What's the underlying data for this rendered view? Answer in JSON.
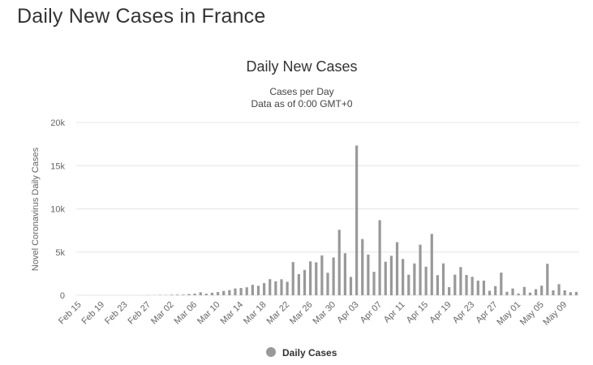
{
  "page": {
    "title": "Daily New Cases in France"
  },
  "colors": {
    "bar": "#999999",
    "grid": "#e6e6e6",
    "text": "#333333"
  },
  "chart_data": {
    "type": "bar",
    "title": "Daily New Cases",
    "subtitle": [
      "Cases per Day",
      "Data as of 0:00 GMT+0"
    ],
    "xlabel": "",
    "ylabel": "Novel Coronavirus Daily Cases",
    "ylim": [
      0,
      20000
    ],
    "yticks": [
      0,
      5000,
      10000,
      15000,
      20000
    ],
    "ytick_labels": [
      "0",
      "5k",
      "10k",
      "15k",
      "20k"
    ],
    "legend": {
      "label": "Daily Cases",
      "position": "bottom-center"
    },
    "categories": [
      "Feb 15",
      "Feb 16",
      "Feb 17",
      "Feb 18",
      "Feb 19",
      "Feb 20",
      "Feb 21",
      "Feb 22",
      "Feb 23",
      "Feb 24",
      "Feb 25",
      "Feb 26",
      "Feb 27",
      "Feb 28",
      "Feb 29",
      "Mar 01",
      "Mar 02",
      "Mar 03",
      "Mar 04",
      "Mar 05",
      "Mar 06",
      "Mar 07",
      "Mar 08",
      "Mar 09",
      "Mar 10",
      "Mar 11",
      "Mar 12",
      "Mar 13",
      "Mar 14",
      "Mar 15",
      "Mar 16",
      "Mar 17",
      "Mar 18",
      "Mar 19",
      "Mar 20",
      "Mar 21",
      "Mar 22",
      "Mar 23",
      "Mar 24",
      "Mar 25",
      "Mar 26",
      "Mar 27",
      "Mar 28",
      "Mar 29",
      "Mar 30",
      "Mar 31",
      "Apr 01",
      "Apr 02",
      "Apr 03",
      "Apr 04",
      "Apr 05",
      "Apr 06",
      "Apr 07",
      "Apr 08",
      "Apr 09",
      "Apr 10",
      "Apr 11",
      "Apr 12",
      "Apr 13",
      "Apr 14",
      "Apr 15",
      "Apr 16",
      "Apr 17",
      "Apr 18",
      "Apr 19",
      "Apr 20",
      "Apr 21",
      "Apr 22",
      "Apr 23",
      "Apr 24",
      "Apr 25",
      "Apr 26",
      "Apr 27",
      "Apr 28",
      "Apr 29",
      "Apr 30",
      "May 01",
      "May 02",
      "May 03",
      "May 04",
      "May 05",
      "May 06",
      "May 07",
      "May 08",
      "May 09",
      "May 10",
      "May 11"
    ],
    "x_tick_labels": [
      "Feb 15",
      "Feb 19",
      "Feb 23",
      "Feb 27",
      "Mar 02",
      "Mar 06",
      "Mar 10",
      "Mar 14",
      "Mar 18",
      "Mar 22",
      "Mar 26",
      "Mar 30",
      "Apr 03",
      "Apr 07",
      "Apr 11",
      "Apr 15",
      "Apr 19",
      "Apr 23",
      "Apr 27",
      "May 01",
      "May 05",
      "May 09"
    ],
    "series": [
      {
        "name": "Daily Cases",
        "values": [
          0,
          0,
          0,
          0,
          0,
          0,
          0,
          0,
          0,
          0,
          2,
          4,
          20,
          19,
          43,
          30,
          61,
          71,
          73,
          138,
          190,
          336,
          177,
          286,
          372,
          497,
          595,
          785,
          838,
          924,
          1210,
          1097,
          1404,
          1861,
          1617,
          1847,
          1559,
          3838,
          2446,
          2931,
          3922,
          3809,
          4611,
          2599,
          4376,
          7578,
          4861,
          2116,
          17335,
          6507,
          4709,
          2714,
          8689,
          3881,
          4571,
          6139,
          4198,
          2377,
          3681,
          5857,
          3301,
          7106,
          2322,
          3686,
          935,
          2383,
          3263,
          2347,
          2134,
          1692,
          1692,
          521,
          1055,
          2622,
          398,
          782,
          193,
          963,
          306,
          701,
          1105,
          3640,
          576,
          1284,
          570,
          355,
          388
        ]
      }
    ]
  }
}
